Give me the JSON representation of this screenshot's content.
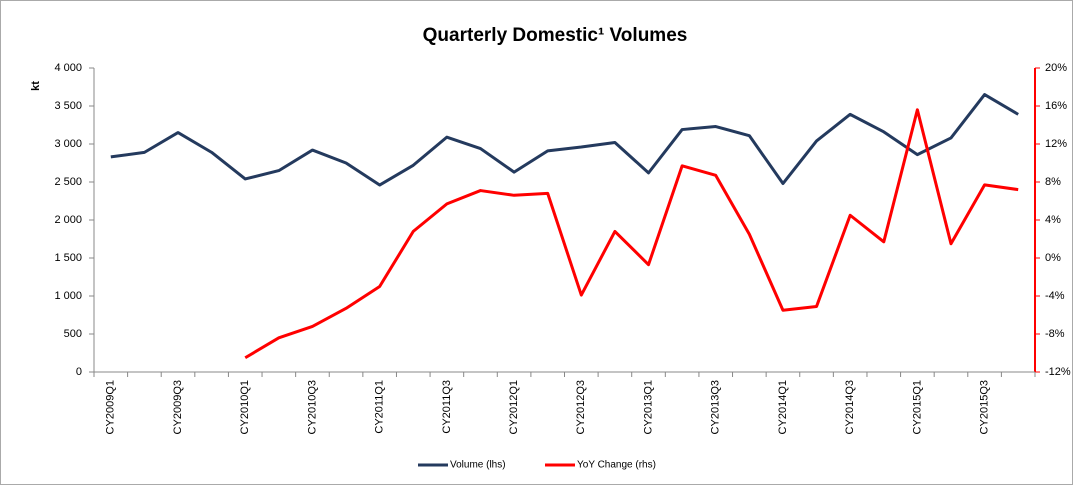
{
  "chart_data": {
    "type": "line",
    "title": "Quarterly Domestic¹ Volumes",
    "y_label": "kt",
    "categories": [
      "CY2009Q1",
      null,
      "CY2009Q3",
      null,
      "CY2010Q1",
      null,
      "CY2010Q3",
      null,
      "CY2011Q1",
      null,
      "CY2011Q3",
      null,
      "CY2012Q1",
      null,
      "CY2012Q3",
      null,
      "CY2013Q1",
      null,
      "CY2013Q3",
      null,
      "CY2014Q1",
      null,
      "CY2014Q3",
      null,
      "CY2015Q1",
      null,
      "CY2015Q3",
      null
    ],
    "series": [
      {
        "name": "Volume (lhs)",
        "color": "#243a5e",
        "values": [
          2830,
          2890,
          3150,
          2890,
          2540,
          2650,
          2920,
          2750,
          2460,
          2720,
          3090,
          2940,
          2630,
          2910,
          2960,
          3020,
          2620,
          3190,
          3230,
          3110,
          2480,
          3040,
          3390,
          3160,
          2860,
          3080,
          3650,
          3390
        ]
      },
      {
        "name": "YoY Change (rhs)",
        "color": "#ff0000",
        "axis": "y2",
        "values": [
          null,
          null,
          null,
          null,
          -10.5,
          -8.4,
          -7.2,
          -5.3,
          -3.0,
          2.8,
          5.7,
          7.1,
          6.6,
          6.8,
          -3.9,
          2.8,
          -0.7,
          9.7,
          8.7,
          2.5,
          -5.5,
          -5.1,
          4.5,
          1.7,
          15.6,
          1.5,
          7.7,
          7.2
        ]
      }
    ],
    "ylim": [
      0,
      4000
    ],
    "yticks": [
      0,
      500,
      {
        "value": 1000,
        "label": "1 000"
      },
      {
        "value": 1500,
        "label": "1 500"
      },
      {
        "value": 2000,
        "label": "2 000"
      },
      {
        "value": 2500,
        "label": "2 500"
      },
      {
        "value": 3000,
        "label": "3 000"
      },
      {
        "value": 3500,
        "label": "3 500"
      },
      {
        "value": 4000,
        "label": "4 000"
      }
    ],
    "y2lim": [
      -12,
      20
    ],
    "y2ticks": [
      {
        "value": -12,
        "label": "-12%"
      },
      {
        "value": -8,
        "label": "-8%"
      },
      {
        "value": -4,
        "label": "-4%"
      },
      {
        "value": 0,
        "label": "0%"
      },
      {
        "value": 4,
        "label": "4%"
      },
      {
        "value": 8,
        "label": "8%"
      },
      {
        "value": 12,
        "label": "12%"
      },
      {
        "value": 16,
        "label": "16%"
      },
      {
        "value": 20,
        "label": "20%"
      }
    ],
    "y2_color": "#ff0000",
    "grid": false,
    "legend": "bottom"
  }
}
